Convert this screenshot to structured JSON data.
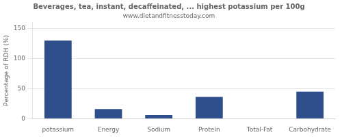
{
  "chart_data": {
    "type": "bar",
    "title": "Beverages, tea, instant, decaffeinated, ... highest potassium per 100g",
    "subtitle": "www.dietandfitnesstoday.com",
    "categories": [
      "potassium",
      "Energy",
      "Sodium",
      "Protein",
      "Total-Fat",
      "Carbohydrate"
    ],
    "values": [
      130,
      16,
      6,
      36,
      0,
      45
    ],
    "color": "#2e4f8c",
    "ylabel": "Percentage of RDH (%)",
    "ylim": [
      0,
      160
    ],
    "yticks": [
      0,
      50,
      100,
      150
    ],
    "grid": true
  }
}
